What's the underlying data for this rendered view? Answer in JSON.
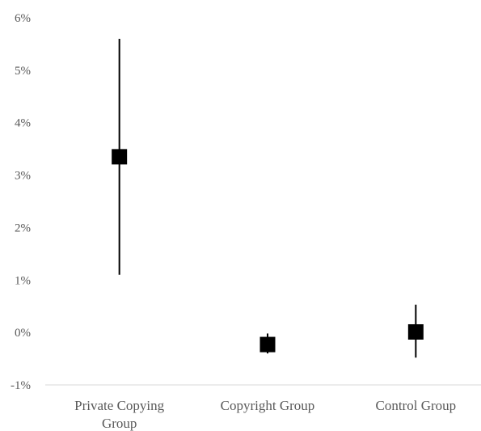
{
  "chart_data": {
    "type": "scatter",
    "subtype": "error-bar",
    "title": "",
    "xlabel": "",
    "ylabel": "",
    "categories": [
      [
        "Private Copying",
        "Group"
      ],
      [
        "Copyright Group"
      ],
      [
        "Control Group"
      ]
    ],
    "series": [
      {
        "values": [
          3.35,
          -0.23,
          0.01
        ],
        "lower": [
          1.1,
          -0.4,
          -0.48
        ],
        "upper": [
          5.6,
          -0.02,
          0.53
        ]
      }
    ],
    "ylim": [
      -1,
      6
    ],
    "yticks": [
      -1,
      0,
      1,
      2,
      3,
      4,
      5,
      6
    ],
    "ytick_labels": [
      "-1%",
      "0%",
      "1%",
      "2%",
      "3%",
      "4%",
      "5%",
      "6%"
    ],
    "grid": false,
    "legend": "none",
    "marker": "square",
    "colors": {
      "marker": "#000000",
      "axis": "#d9d9d9",
      "text": "#595959"
    }
  }
}
